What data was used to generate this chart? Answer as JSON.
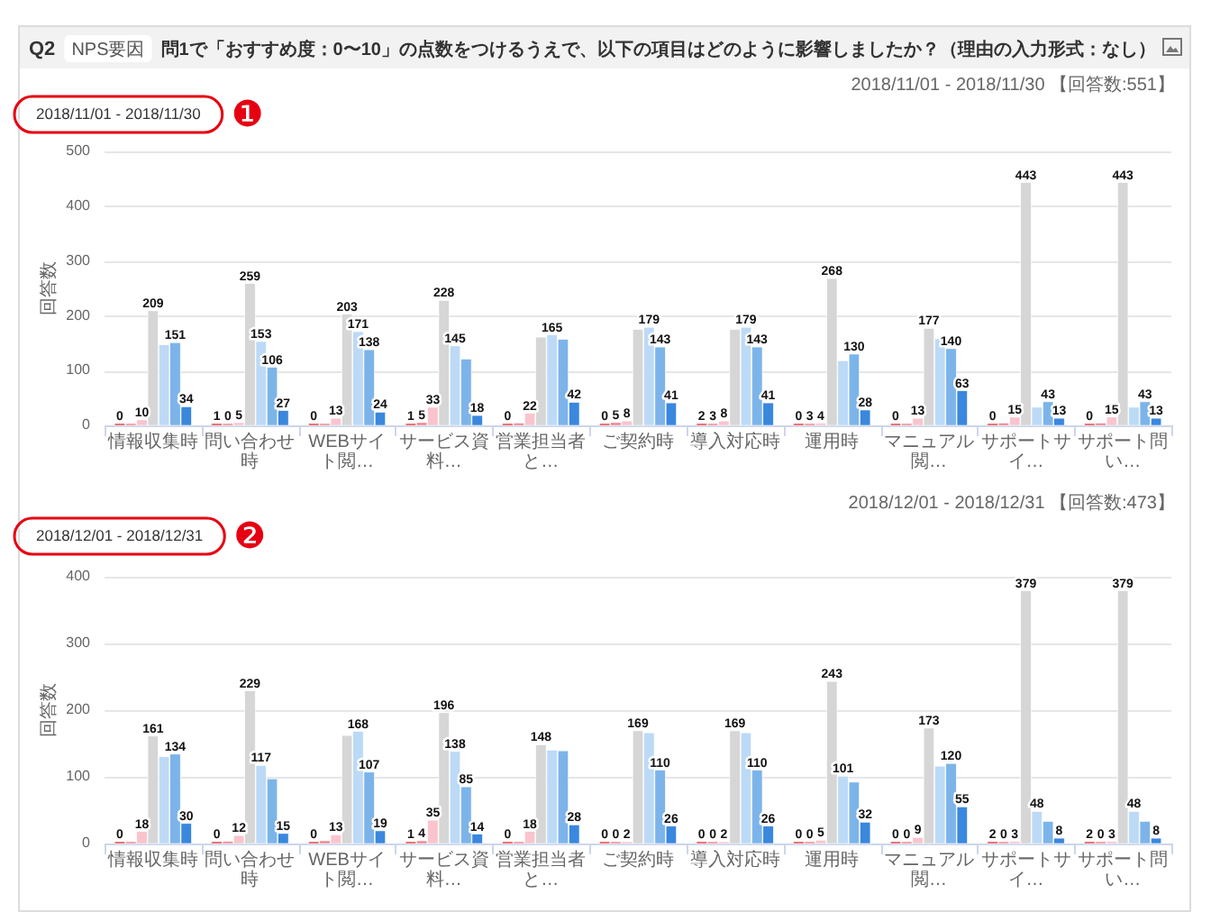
{
  "chart_data": [
    {
      "type": "other",
      "title": "問1で「おすすめ度：0〜10」の点数をつけるうえで、以下の項目はどのように影響しましたか？（理由の入力形式：なし）",
      "annotations": [
        "Q2",
        "NPS要因"
      ]
    },
    {
      "type": "bar",
      "subtitle": "2018/11/01 - 2018/11/30 【回答数:551】",
      "annotations": [
        "2018/11/01 - 2018/11/30",
        "❶"
      ],
      "ylabel": "回答数",
      "categories": [
        "情報収集時",
        "問い合わせ時",
        "WEBサイト閲…",
        "サービス資料…",
        "営業担当者と…",
        "ご契約時",
        "導入対応時",
        "運用時",
        "マニュアル閲…",
        "サポートサイ…",
        "サポート問い…"
      ],
      "series": [
        {
          "color": "#e8383d",
          "values": [
            0,
            1,
            0,
            1,
            0,
            0,
            2,
            0,
            0,
            0,
            0
          ],
          "value_labels": [
            "0",
            "1",
            "0",
            "1",
            "0",
            "0",
            "2",
            "0",
            "0",
            "0",
            "0"
          ]
        },
        {
          "color": "#f3808c",
          "values": [
            0,
            0,
            2,
            5,
            4,
            5,
            3,
            3,
            0,
            4,
            4
          ],
          "value_labels": [
            null,
            "0",
            null,
            "5",
            null,
            "5",
            "3",
            "3",
            null,
            null,
            null
          ]
        },
        {
          "color": "#f9c4ce",
          "values": [
            10,
            5,
            13,
            33,
            22,
            8,
            8,
            4,
            13,
            15,
            15
          ],
          "value_labels": [
            "10",
            "5",
            "13",
            "33",
            "22",
            "8",
            "8",
            "4",
            "13",
            "15",
            "15"
          ]
        },
        {
          "color": "#d6d6d6",
          "values": [
            209,
            259,
            203,
            228,
            161,
            175,
            175,
            268,
            177,
            443,
            443
          ],
          "value_labels": [
            "209",
            "259",
            "203",
            "228",
            null,
            null,
            null,
            "268",
            "177",
            "443",
            "443"
          ]
        },
        {
          "color": "#bcdaf6",
          "values": [
            147,
            153,
            171,
            145,
            165,
            179,
            179,
            118,
            158,
            33,
            33
          ],
          "value_labels": [
            null,
            "153",
            "171",
            "145",
            "165",
            "179",
            "179",
            null,
            null,
            null,
            null
          ]
        },
        {
          "color": "#7cb4ea",
          "values": [
            151,
            106,
            138,
            121,
            157,
            143,
            143,
            130,
            140,
            43,
            43
          ],
          "value_labels": [
            "151",
            "106",
            "138",
            null,
            null,
            "143",
            "143",
            "130",
            "140",
            "43",
            "43"
          ]
        },
        {
          "color": "#3a87de",
          "values": [
            34,
            27,
            24,
            18,
            42,
            41,
            41,
            28,
            63,
            13,
            13
          ],
          "value_labels": [
            "34",
            "27",
            "24",
            "18",
            "42",
            "41",
            "41",
            "28",
            "63",
            "13",
            "13"
          ]
        }
      ],
      "ylim": [
        0,
        500
      ],
      "yticks": [
        0,
        100,
        200,
        300,
        400,
        500
      ],
      "grid": "y"
    },
    {
      "type": "bar",
      "subtitle": "2018/12/01 - 2018/12/31 【回答数:473】",
      "annotations": [
        "2018/12/01 - 2018/12/31",
        "❷"
      ],
      "ylabel": "回答数",
      "categories": [
        "情報収集時",
        "問い合わせ時",
        "WEBサイト閲…",
        "サービス資料…",
        "営業担当者と…",
        "ご契約時",
        "導入対応時",
        "運用時",
        "マニュアル閲…",
        "サポートサイ…",
        "サポート問い…"
      ],
      "series": [
        {
          "color": "#e8383d",
          "values": [
            0,
            0,
            0,
            1,
            0,
            0,
            0,
            0,
            0,
            2,
            2
          ],
          "value_labels": [
            "0",
            "0",
            "0",
            "1",
            "0",
            "0",
            "0",
            "0",
            "0",
            "2",
            "2"
          ]
        },
        {
          "color": "#f3808c",
          "values": [
            0,
            3,
            4,
            4,
            0,
            0,
            0,
            0,
            0,
            0,
            0
          ],
          "value_labels": [
            null,
            null,
            null,
            "4",
            null,
            "0",
            "0",
            "0",
            "0",
            "0",
            "0"
          ]
        },
        {
          "color": "#f9c4ce",
          "values": [
            18,
            12,
            13,
            35,
            18,
            2,
            2,
            5,
            9,
            3,
            3
          ],
          "value_labels": [
            "18",
            "12",
            "13",
            "35",
            "18",
            "2",
            "2",
            "5",
            "9",
            "3",
            "3"
          ]
        },
        {
          "color": "#d6d6d6",
          "values": [
            161,
            229,
            162,
            196,
            148,
            169,
            169,
            243,
            173,
            379,
            379
          ],
          "value_labels": [
            "161",
            "229",
            null,
            "196",
            "148",
            "169",
            "169",
            "243",
            "173",
            "379",
            "379"
          ]
        },
        {
          "color": "#bcdaf6",
          "values": [
            130,
            117,
            168,
            138,
            140,
            166,
            166,
            101,
            116,
            48,
            48
          ],
          "value_labels": [
            null,
            "117",
            "168",
            "138",
            null,
            null,
            null,
            "101",
            null,
            "48",
            "48"
          ]
        },
        {
          "color": "#7cb4ea",
          "values": [
            134,
            97,
            107,
            85,
            139,
            110,
            110,
            92,
            120,
            33,
            33
          ],
          "value_labels": [
            "134",
            null,
            "107",
            "85",
            null,
            "110",
            "110",
            null,
            "120",
            null,
            null
          ]
        },
        {
          "color": "#3a87de",
          "values": [
            30,
            15,
            19,
            14,
            28,
            26,
            26,
            32,
            55,
            8,
            8
          ],
          "value_labels": [
            "30",
            "15",
            "19",
            "14",
            "28",
            "26",
            "26",
            "32",
            "55",
            "8",
            "8"
          ]
        }
      ],
      "ylim": [
        0,
        400
      ],
      "yticks": [
        0,
        100,
        200,
        300,
        400
      ],
      "grid": "y"
    }
  ]
}
